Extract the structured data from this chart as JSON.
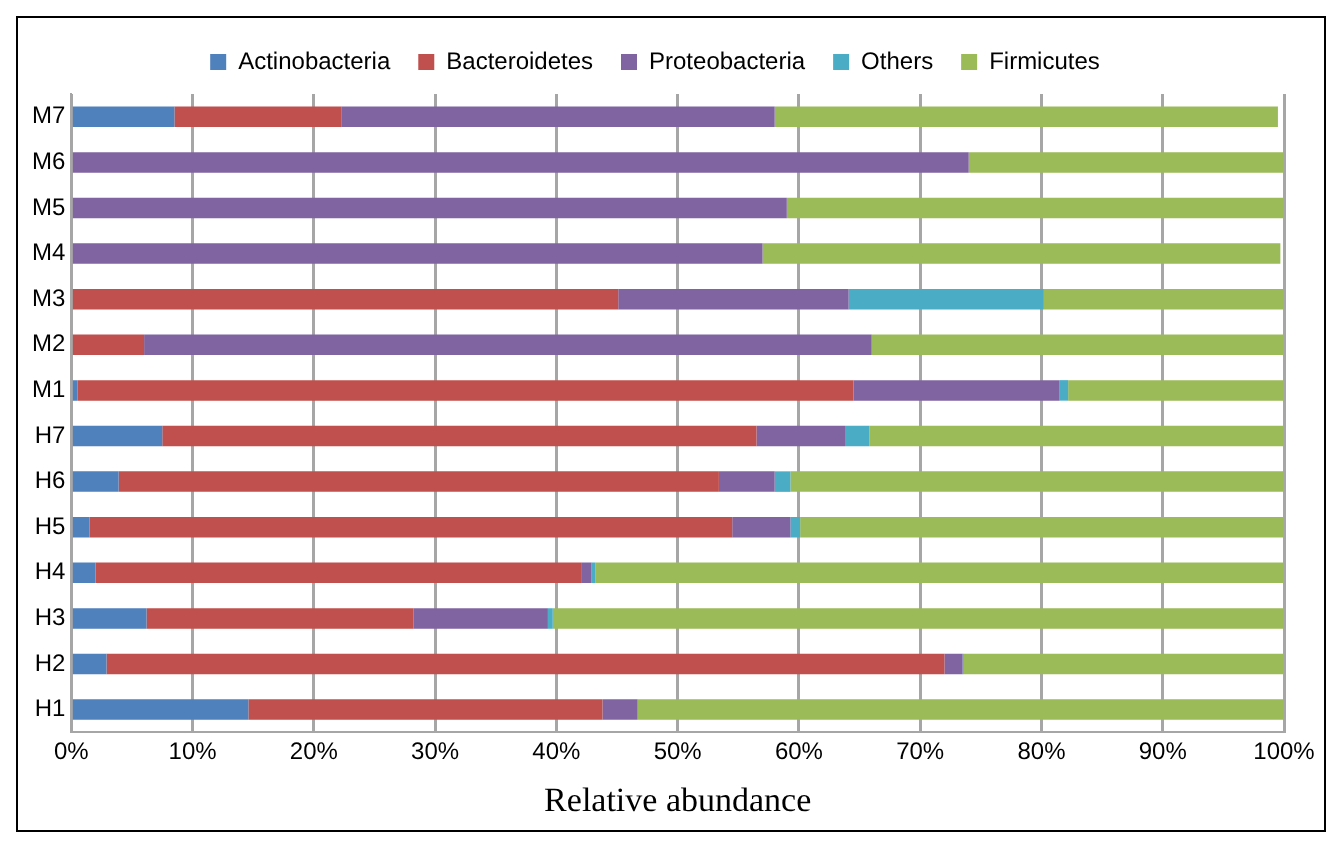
{
  "chart_data": {
    "type": "bar",
    "orientation": "horizontal",
    "stacked": true,
    "xlabel": "Relative abundance",
    "categories": [
      "M7",
      "M6",
      "M5",
      "M4",
      "M3",
      "M2",
      "M1",
      "H7",
      "H6",
      "H5",
      "H4",
      "H3",
      "H2",
      "H1"
    ],
    "series": [
      {
        "name": "Actinobacteria",
        "color": "#4f81bd",
        "values": [
          8.5,
          0,
          0,
          0,
          0,
          0,
          0.5,
          7.5,
          3.9,
          1.5,
          2.0,
          6.2,
          2.9,
          14.6
        ]
      },
      {
        "name": "Bacteroidetes",
        "color": "#c0504d",
        "values": [
          13.8,
          0,
          0,
          0,
          45.1,
          6,
          64,
          49,
          49.5,
          53,
          40.1,
          22,
          69.1,
          29.2
        ]
      },
      {
        "name": "Proteobacteria",
        "color": "#8064a2",
        "values": [
          35.7,
          74,
          59,
          57,
          19,
          60,
          17,
          7.3,
          4.6,
          4.8,
          0.8,
          11.1,
          1.5,
          2.9
        ]
      },
      {
        "name": "Others",
        "color": "#4bacc6",
        "values": [
          0,
          0,
          0,
          0,
          16.1,
          0,
          0.7,
          2,
          1.3,
          0.8,
          0.3,
          0.4,
          0.1,
          0
        ]
      },
      {
        "name": "Firmicutes",
        "color": "#9bbb59",
        "values": [
          41.5,
          26,
          41,
          42.7,
          19.8,
          34,
          17.8,
          34.2,
          40.7,
          39.9,
          56.8,
          60.3,
          26.4,
          53.3
        ]
      }
    ],
    "xlim": [
      0,
      100
    ],
    "xticks": [
      {
        "value": 0,
        "label": "0%"
      },
      {
        "value": 10,
        "label": "10%"
      },
      {
        "value": 20,
        "label": "20%"
      },
      {
        "value": 30,
        "label": "30%"
      },
      {
        "value": 40,
        "label": "40%"
      },
      {
        "value": 50,
        "label": "50%"
      },
      {
        "value": 60,
        "label": "60%"
      },
      {
        "value": 70,
        "label": "70%"
      },
      {
        "value": 80,
        "label": "80%"
      },
      {
        "value": 90,
        "label": "90%"
      },
      {
        "value": 100,
        "label": "100%"
      }
    ],
    "grid": "x",
    "legend": "top"
  }
}
